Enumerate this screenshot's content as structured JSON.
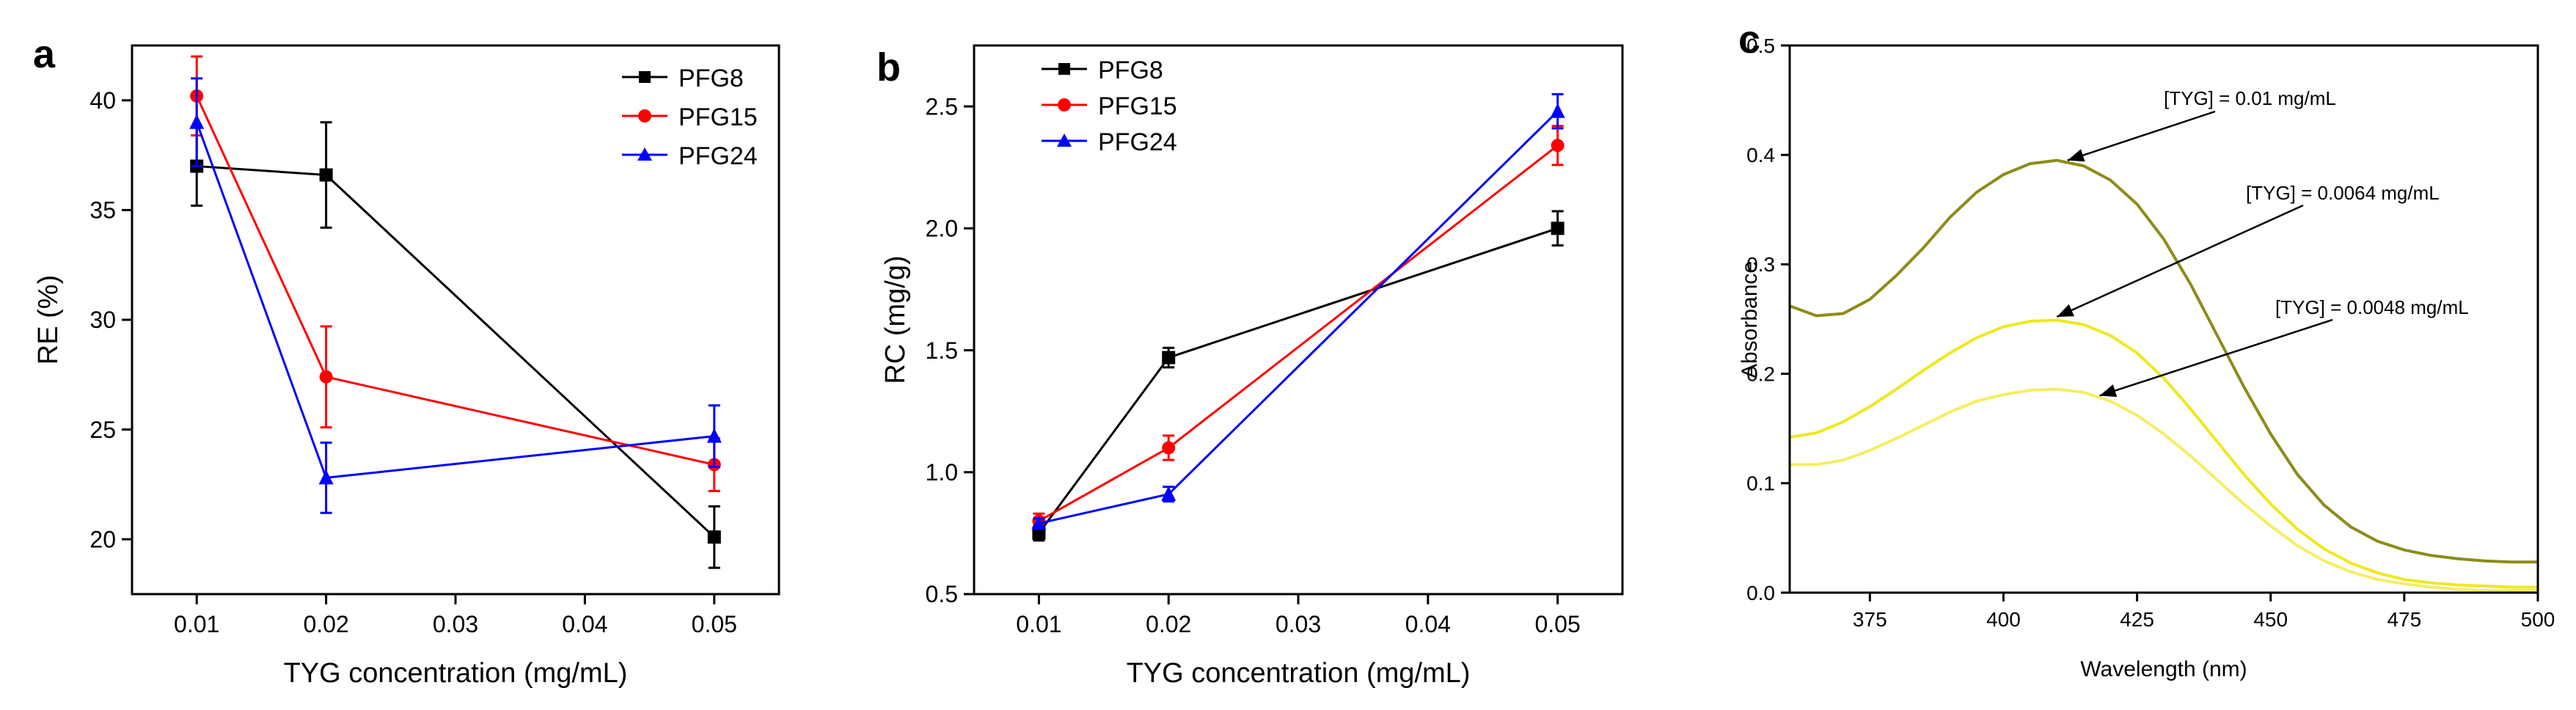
{
  "chart_data": [
    {
      "panel": "a",
      "type": "line",
      "xlabel": "TYG concentration (mg/mL)",
      "ylabel": "RE (%)",
      "xlim": [
        0.005,
        0.055
      ],
      "ylim": [
        17.5,
        42.5
      ],
      "xticks": [
        "0.01",
        "0.02",
        "0.03",
        "0.04",
        "0.05"
      ],
      "xtick_values": [
        0.01,
        0.02,
        0.03,
        0.04,
        0.05
      ],
      "yticks": [
        "20",
        "25",
        "30",
        "35",
        "40"
      ],
      "ytick_values": [
        20,
        25,
        30,
        35,
        40
      ],
      "legend_position": "top-right",
      "series": [
        {
          "name": "PFG8",
          "color": "#000000",
          "marker": "square",
          "x": [
            0.01,
            0.02,
            0.05
          ],
          "values": [
            37.0,
            36.6,
            20.1
          ],
          "errors": [
            1.8,
            2.4,
            1.4
          ]
        },
        {
          "name": "PFG15",
          "color": "#ff0000",
          "marker": "circle",
          "x": [
            0.01,
            0.02,
            0.05
          ],
          "values": [
            40.2,
            27.4,
            23.4
          ],
          "errors": [
            1.8,
            2.3,
            1.2
          ]
        },
        {
          "name": "PFG24",
          "color": "#0000ff",
          "marker": "triangle",
          "x": [
            0.01,
            0.02,
            0.05
          ],
          "values": [
            39.0,
            22.8,
            24.7
          ],
          "errors": [
            2.0,
            1.6,
            1.4
          ]
        }
      ]
    },
    {
      "panel": "b",
      "type": "line",
      "xlabel": "TYG concentration (mg/mL)",
      "ylabel": "RC (mg/g)",
      "xlim": [
        0.005,
        0.055
      ],
      "ylim": [
        0.5,
        2.75
      ],
      "xticks": [
        "0.01",
        "0.02",
        "0.03",
        "0.04",
        "0.05"
      ],
      "xtick_values": [
        0.01,
        0.02,
        0.03,
        0.04,
        0.05
      ],
      "yticks": [
        "0.5",
        "1.0",
        "1.5",
        "2.0",
        "2.5"
      ],
      "ytick_values": [
        0.5,
        1.0,
        1.5,
        2.0,
        2.5
      ],
      "legend_position": "top-left",
      "series": [
        {
          "name": "PFG8",
          "color": "#000000",
          "marker": "square",
          "x": [
            0.01,
            0.02,
            0.05
          ],
          "values": [
            0.75,
            1.47,
            2.0
          ],
          "errors": [
            0.03,
            0.04,
            0.07
          ]
        },
        {
          "name": "PFG15",
          "color": "#ff0000",
          "marker": "circle",
          "x": [
            0.01,
            0.02,
            0.05
          ],
          "values": [
            0.8,
            1.1,
            2.34
          ],
          "errors": [
            0.03,
            0.05,
            0.08
          ]
        },
        {
          "name": "PFG24",
          "color": "#0000ff",
          "marker": "triangle",
          "x": [
            0.01,
            0.02,
            0.05
          ],
          "values": [
            0.79,
            0.91,
            2.48
          ],
          "errors": [
            0.02,
            0.03,
            0.07
          ]
        }
      ]
    },
    {
      "panel": "c",
      "type": "line",
      "xlabel": "Wavelength (nm)",
      "ylabel": "Absorbance",
      "xlim": [
        360,
        500
      ],
      "ylim": [
        0.0,
        0.5
      ],
      "xticks": [
        "375",
        "400",
        "425",
        "450",
        "475",
        "500"
      ],
      "xtick_values": [
        375,
        400,
        425,
        450,
        475,
        500
      ],
      "yticks": [
        "0.0",
        "0.1",
        "0.2",
        "0.3",
        "0.4",
        "0.5"
      ],
      "ytick_values": [
        0.0,
        0.1,
        0.2,
        0.3,
        0.4,
        0.5
      ],
      "series": [
        {
          "name": "[TYG] = 0.01 mg/mL",
          "color": "#8c8c1a",
          "x": [
            360,
            365,
            370,
            375,
            380,
            385,
            390,
            395,
            400,
            405,
            410,
            415,
            420,
            425,
            430,
            435,
            440,
            445,
            450,
            455,
            460,
            465,
            470,
            475,
            480,
            485,
            490,
            495,
            500
          ],
          "values": [
            0.262,
            0.253,
            0.255,
            0.268,
            0.29,
            0.315,
            0.343,
            0.366,
            0.382,
            0.392,
            0.395,
            0.39,
            0.377,
            0.355,
            0.323,
            0.282,
            0.235,
            0.188,
            0.145,
            0.108,
            0.08,
            0.06,
            0.047,
            0.039,
            0.034,
            0.031,
            0.029,
            0.028,
            0.028
          ]
        },
        {
          "name": "[TYG] = 0.0064 mg/mL",
          "color": "#f0e81e",
          "x": [
            360,
            365,
            370,
            375,
            380,
            385,
            390,
            395,
            400,
            405,
            410,
            415,
            420,
            425,
            430,
            435,
            440,
            445,
            450,
            455,
            460,
            465,
            470,
            475,
            480,
            485,
            490,
            495,
            500
          ],
          "values": [
            0.142,
            0.146,
            0.156,
            0.17,
            0.186,
            0.203,
            0.219,
            0.233,
            0.243,
            0.248,
            0.249,
            0.245,
            0.235,
            0.219,
            0.196,
            0.168,
            0.138,
            0.108,
            0.081,
            0.058,
            0.04,
            0.027,
            0.018,
            0.012,
            0.009,
            0.007,
            0.006,
            0.005,
            0.005
          ]
        },
        {
          "name": "[TYG] = 0.0048 mg/mL",
          "color": "#f5ee63",
          "x": [
            360,
            365,
            370,
            375,
            380,
            385,
            390,
            395,
            400,
            405,
            410,
            415,
            420,
            425,
            430,
            435,
            440,
            445,
            450,
            455,
            460,
            465,
            470,
            475,
            480,
            485,
            490,
            495,
            500
          ],
          "values": [
            0.117,
            0.117,
            0.121,
            0.13,
            0.141,
            0.153,
            0.165,
            0.175,
            0.181,
            0.185,
            0.186,
            0.183,
            0.175,
            0.162,
            0.145,
            0.125,
            0.103,
            0.081,
            0.061,
            0.043,
            0.029,
            0.019,
            0.012,
            0.008,
            0.005,
            0.003,
            0.002,
            0.002,
            0.002
          ]
        }
      ],
      "annotations": [
        {
          "text": "[TYG] = 0.01 mg/mL",
          "arrow_to": [
            412,
            0.395
          ]
        },
        {
          "text": "[TYG] = 0.0064 mg/mL",
          "arrow_to": [
            410,
            0.252
          ]
        },
        {
          "text": "[TYG] = 0.0048 mg/mL",
          "arrow_to": [
            418,
            0.18
          ]
        }
      ]
    }
  ]
}
